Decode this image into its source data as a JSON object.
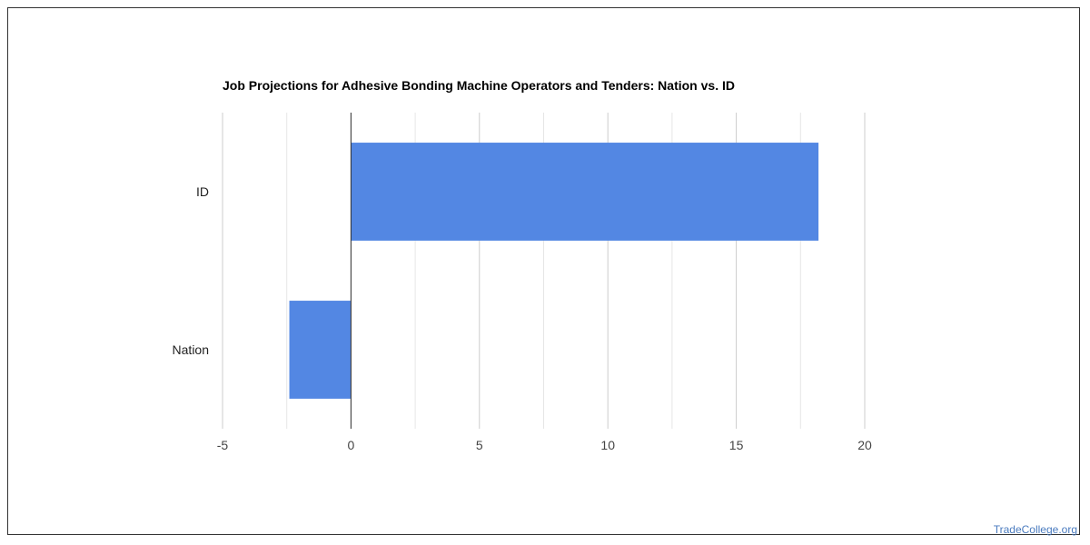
{
  "chart_data": {
    "type": "bar",
    "orientation": "horizontal",
    "title": "Job Projections for Adhesive Bonding Machine Operators and Tenders: Nation vs. ID",
    "categories": [
      "ID",
      "Nation"
    ],
    "values": [
      18.2,
      -2.4
    ],
    "xlim": [
      -5,
      20
    ],
    "xticks": [
      -5,
      0,
      5,
      10,
      15,
      20
    ],
    "grid": true,
    "bar_color": "#5387e3"
  },
  "watermark": "TradeCollege.org"
}
